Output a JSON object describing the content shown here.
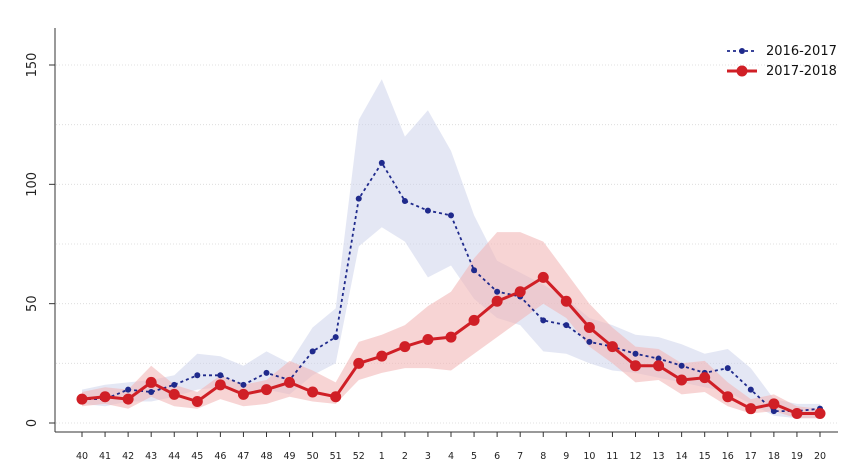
{
  "chart_data": {
    "type": "line",
    "x": [
      "40",
      "41",
      "42",
      "43",
      "44",
      "45",
      "46",
      "47",
      "48",
      "49",
      "50",
      "51",
      "52",
      "1",
      "2",
      "3",
      "4",
      "5",
      "6",
      "7",
      "8",
      "9",
      "10",
      "11",
      "12",
      "13",
      "14",
      "15",
      "16",
      "17",
      "18",
      "19",
      "20"
    ],
    "yticks": [
      0,
      50,
      100,
      150
    ],
    "ylim": [
      -3,
      165
    ],
    "grid": true,
    "legend_position": "top-right",
    "series": [
      {
        "name": "2016-2017",
        "style": "dashed-small-markers",
        "color": "#1f2a8c",
        "band_color": "#c9cfea",
        "values": [
          10,
          10,
          14,
          13,
          16,
          20,
          20,
          16,
          21,
          18,
          30,
          36,
          94,
          109,
          93,
          89,
          87,
          64,
          55,
          53,
          43,
          41,
          34,
          32,
          29,
          27,
          24,
          21,
          23,
          14,
          5,
          5,
          6
        ],
        "lower": [
          8,
          7,
          9,
          9,
          11,
          14,
          15,
          12,
          14,
          12,
          20,
          25,
          74,
          82,
          76,
          61,
          66,
          52,
          44,
          41,
          30,
          29,
          25,
          22,
          21,
          19,
          17,
          15,
          13,
          8,
          3,
          2,
          2
        ],
        "upper": [
          14,
          16,
          17,
          18,
          20,
          29,
          28,
          24,
          30,
          25,
          40,
          48,
          127,
          144,
          120,
          131,
          114,
          87,
          68,
          63,
          58,
          52,
          44,
          41,
          37,
          36,
          33,
          29,
          31,
          23,
          10,
          8,
          8
        ]
      },
      {
        "name": "2017-2018",
        "style": "solid-large-markers",
        "color": "#d01f26",
        "band_color": "#f2b7b7",
        "values": [
          10,
          11,
          10,
          17,
          12,
          9,
          16,
          12,
          14,
          17,
          13,
          11,
          25,
          28,
          32,
          35,
          36,
          43,
          51,
          55,
          61,
          51,
          40,
          32,
          24,
          24,
          18,
          19,
          11,
          6,
          8,
          4,
          4
        ],
        "lower": [
          7,
          8,
          6,
          11,
          7,
          6,
          10,
          7,
          8,
          11,
          9,
          8,
          18,
          21,
          23,
          23,
          22,
          29,
          36,
          43,
          50,
          44,
          32,
          25,
          17,
          18,
          12,
          13,
          7,
          4,
          5,
          2,
          2
        ],
        "upper": [
          13,
          15,
          14,
          24,
          16,
          13,
          20,
          16,
          18,
          26,
          22,
          17,
          34,
          37,
          41,
          49,
          55,
          69,
          80,
          80,
          76,
          63,
          50,
          40,
          32,
          31,
          25,
          26,
          17,
          10,
          12,
          7,
          6
        ]
      }
    ]
  }
}
